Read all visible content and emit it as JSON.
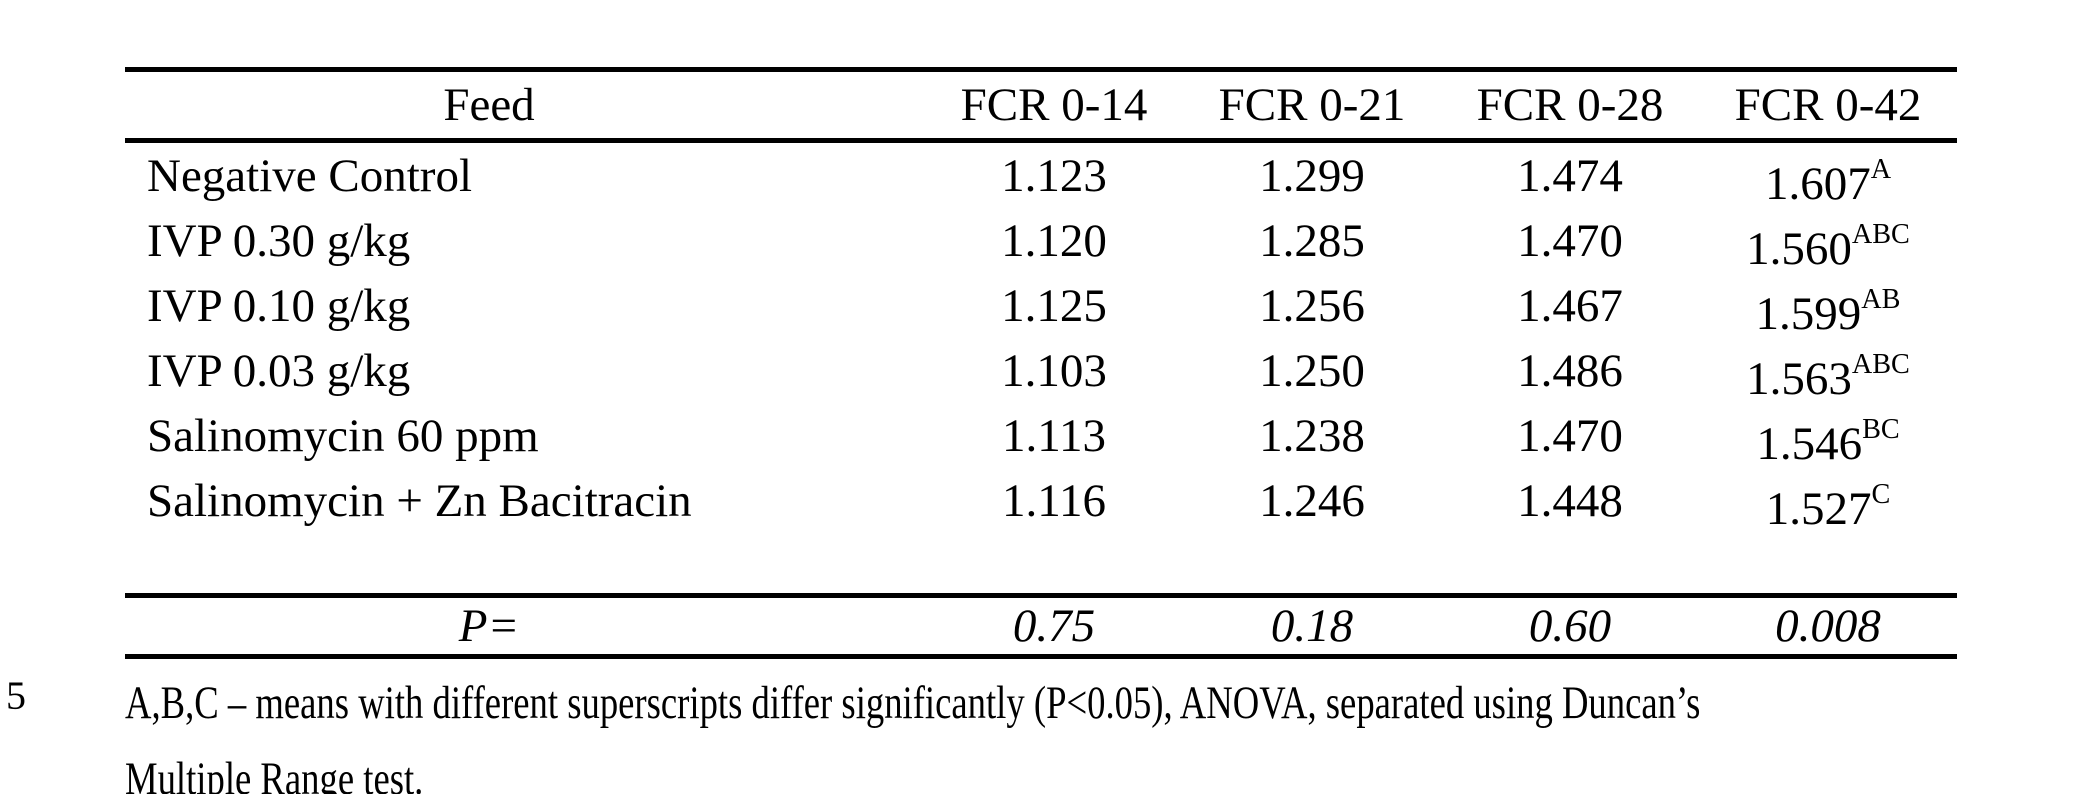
{
  "page": {
    "background_color": "#ffffff",
    "text_color": "#000000"
  },
  "margin": {
    "line_number": "5"
  },
  "table": {
    "headers": {
      "feed": "Feed",
      "c1": "FCR 0-14",
      "c2": "FCR 0-21",
      "c3": "FCR 0-28",
      "c4": "FCR 0-42"
    },
    "rows": [
      {
        "feed": "Negative Control",
        "c1": "1.123",
        "c2": "1.299",
        "c3": "1.474",
        "c4": "1.607",
        "c4_sup": "A"
      },
      {
        "feed": "IVP 0.30 g/kg",
        "c1": "1.120",
        "c2": "1.285",
        "c3": "1.470",
        "c4": "1.560",
        "c4_sup": "ABC"
      },
      {
        "feed": "IVP 0.10 g/kg",
        "c1": "1.125",
        "c2": "1.256",
        "c3": "1.467",
        "c4": "1.599",
        "c4_sup": "AB"
      },
      {
        "feed": "IVP 0.03 g/kg",
        "c1": "1.103",
        "c2": "1.250",
        "c3": "1.486",
        "c4": "1.563",
        "c4_sup": "ABC"
      },
      {
        "feed": "Salinomycin 60 ppm",
        "c1": "1.113",
        "c2": "1.238",
        "c3": "1.470",
        "c4": "1.546",
        "c4_sup": "BC"
      },
      {
        "feed": "Salinomycin + Zn Bacitracin",
        "c1": "1.116",
        "c2": "1.246",
        "c3": "1.448",
        "c4": "1.527",
        "c4_sup": "C"
      }
    ],
    "p_row": {
      "label": "P=",
      "c1": "0.75",
      "c2": "0.18",
      "c3": "0.60",
      "c4": "0.008"
    }
  },
  "footnote": {
    "line1": "A,B,C – means with different superscripts differ significantly (P<0.05), ANOVA, separated using Duncan’s",
    "line2": "Multiple Range test."
  }
}
